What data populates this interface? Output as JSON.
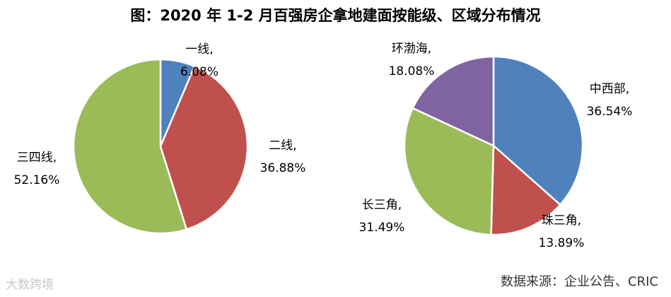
{
  "title": "图：2020 年 1-2 月百强房企拿地建面按能级、区域分布情况",
  "source": "数据来源：企业公告、CRIC",
  "watermark": "大数跨境",
  "chart_data": [
    {
      "type": "pie",
      "slices": [
        {
          "name": "一线,",
          "label": "6.08%",
          "value": 6.08,
          "color": "#4f81bd"
        },
        {
          "name": "二线,",
          "label": "36.88%",
          "value": 36.88,
          "color": "#c0504d"
        },
        {
          "name": "三四线,",
          "label": "52.16%",
          "value": 52.16,
          "color": "#9bbb59"
        }
      ]
    },
    {
      "type": "pie",
      "slices": [
        {
          "name": "中西部,",
          "label": "36.54%",
          "value": 36.54,
          "color": "#4f81bd"
        },
        {
          "name": "珠三角,",
          "label": "13.89%",
          "value": 13.89,
          "color": "#c0504d"
        },
        {
          "name": "长三角,",
          "label": "31.49%",
          "value": 31.49,
          "color": "#9bbb59"
        },
        {
          "name": "环渤海,",
          "label": "18.08%",
          "value": 18.08,
          "color": "#8064a2"
        }
      ]
    }
  ]
}
